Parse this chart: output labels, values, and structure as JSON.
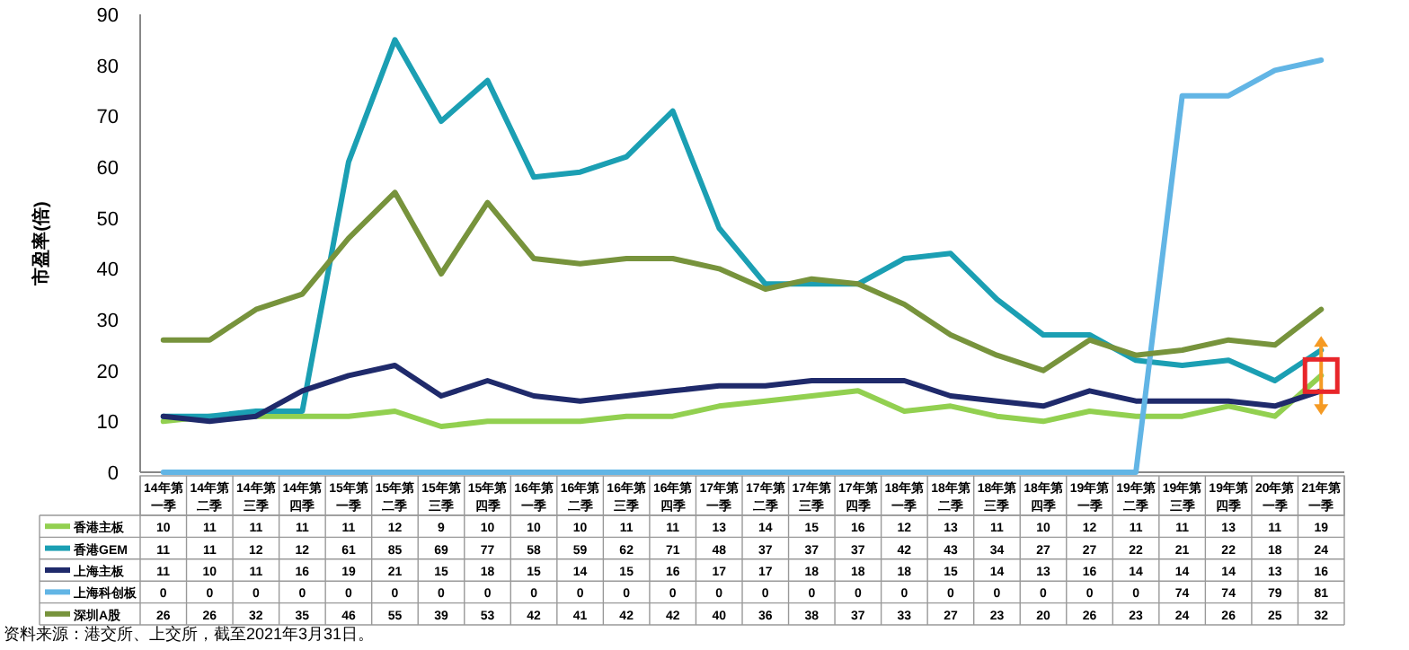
{
  "chart_data": {
    "type": "line",
    "ylabel": "市盈率(倍)",
    "ylim": [
      0,
      90
    ],
    "yticks": [
      0,
      10,
      20,
      30,
      40,
      50,
      60,
      70,
      80,
      90
    ],
    "categories": [
      "14年第一季",
      "14年第二季",
      "14年第三季",
      "14年第四季",
      "15年第一季",
      "15年第二季",
      "15年第三季",
      "15年第四季",
      "16年第一季",
      "16年第二季",
      "16年第三季",
      "16年第四季",
      "17年第一季",
      "17年第二季",
      "17年第三季",
      "17年第四季",
      "18年第一季",
      "18年第二季",
      "18年第三季",
      "18年第四季",
      "19年第一季",
      "19年第二季",
      "19年第三季",
      "19年第四季",
      "20年第一季",
      "21年第一季"
    ],
    "series": [
      {
        "name": "香港主板",
        "color": "#92d050",
        "values": [
          10,
          11,
          11,
          11,
          11,
          12,
          9,
          10,
          10,
          10,
          11,
          11,
          13,
          14,
          15,
          16,
          12,
          13,
          11,
          10,
          12,
          11,
          11,
          13,
          11,
          19
        ]
      },
      {
        "name": "香港GEM",
        "color": "#1b9fb3",
        "values": [
          11,
          11,
          12,
          12,
          61,
          85,
          69,
          77,
          58,
          59,
          62,
          71,
          48,
          37,
          37,
          37,
          42,
          43,
          34,
          27,
          27,
          22,
          21,
          22,
          18,
          24
        ]
      },
      {
        "name": "上海主板",
        "color": "#1f2a6b",
        "values": [
          11,
          10,
          11,
          16,
          19,
          21,
          15,
          18,
          15,
          14,
          15,
          16,
          17,
          17,
          18,
          18,
          18,
          15,
          14,
          13,
          16,
          14,
          14,
          14,
          13,
          16
        ]
      },
      {
        "name": "上海科创板",
        "color": "#62b5e5",
        "values": [
          0,
          0,
          0,
          0,
          0,
          0,
          0,
          0,
          0,
          0,
          0,
          0,
          0,
          0,
          0,
          0,
          0,
          0,
          0,
          0,
          0,
          0,
          74,
          74,
          79,
          81
        ]
      },
      {
        "name": "深圳A股",
        "color": "#77933c",
        "values": [
          26,
          26,
          32,
          35,
          46,
          55,
          39,
          53,
          42,
          41,
          42,
          42,
          40,
          36,
          38,
          37,
          33,
          27,
          23,
          20,
          26,
          23,
          24,
          26,
          25,
          32
        ]
      }
    ],
    "data_labels": true,
    "legend": "bottom",
    "grid": false,
    "marker": "none",
    "annotations": [
      "资料来源：港交所、上交所，截至2021年3月31日。"
    ]
  }
}
